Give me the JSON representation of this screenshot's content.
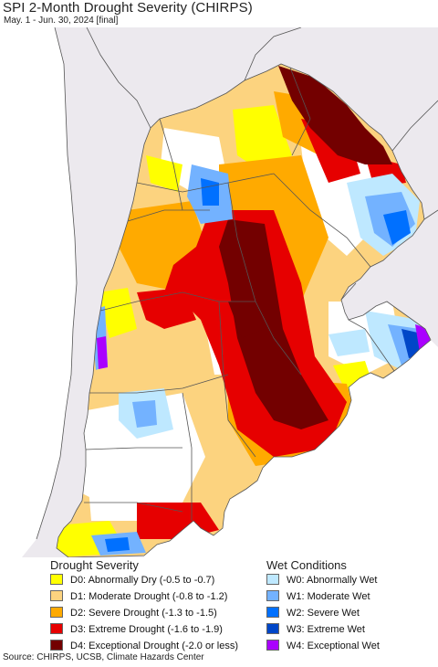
{
  "header": {
    "title": "SPI 2-Month Drought Severity (CHIRPS)",
    "subtitle": "May. 1 - Jun. 30, 2024 [final]"
  },
  "colors": {
    "land_outside": "#ece9ee",
    "sea": "#ffffff",
    "d0": "#ffff00",
    "d1": "#fcd37f",
    "d2": "#ffaa00",
    "d3": "#e60000",
    "d4": "#730000",
    "w0": "#bee8ff",
    "w1": "#73b2ff",
    "w2": "#0070ff",
    "w3": "#0046c8",
    "w4": "#aa00ff",
    "border": "#555555"
  },
  "legend": {
    "drought": {
      "heading": "Drought Severity",
      "items": [
        {
          "label": "D0: Abnormally Dry (-0.5 to -0.7)",
          "color": "#ffff00"
        },
        {
          "label": "D1: Moderate Drought (-0.8 to -1.2)",
          "color": "#fcd37f"
        },
        {
          "label": "D2: Severe Drought (-1.3 to -1.5)",
          "color": "#ffaa00"
        },
        {
          "label": "D3: Extreme Drought (-1.6 to -1.9)",
          "color": "#e60000"
        },
        {
          "label": "D4: Exceptional Drought (-2.0 or less)",
          "color": "#730000"
        }
      ]
    },
    "wet": {
      "heading": "Wet Conditions",
      "items": [
        {
          "label": "W0: Abnormally Wet",
          "color": "#bee8ff"
        },
        {
          "label": "W1: Moderate Wet",
          "color": "#73b2ff"
        },
        {
          "label": "W2: Severe Wet",
          "color": "#0070ff"
        },
        {
          "label": "W3: Extreme Wet",
          "color": "#0046c8"
        },
        {
          "label": "W4: Exceptional Wet",
          "color": "#aa00ff"
        }
      ]
    }
  },
  "footer": {
    "source": "Source: CHIRPS, UCSB, Climate Hazards Center"
  }
}
